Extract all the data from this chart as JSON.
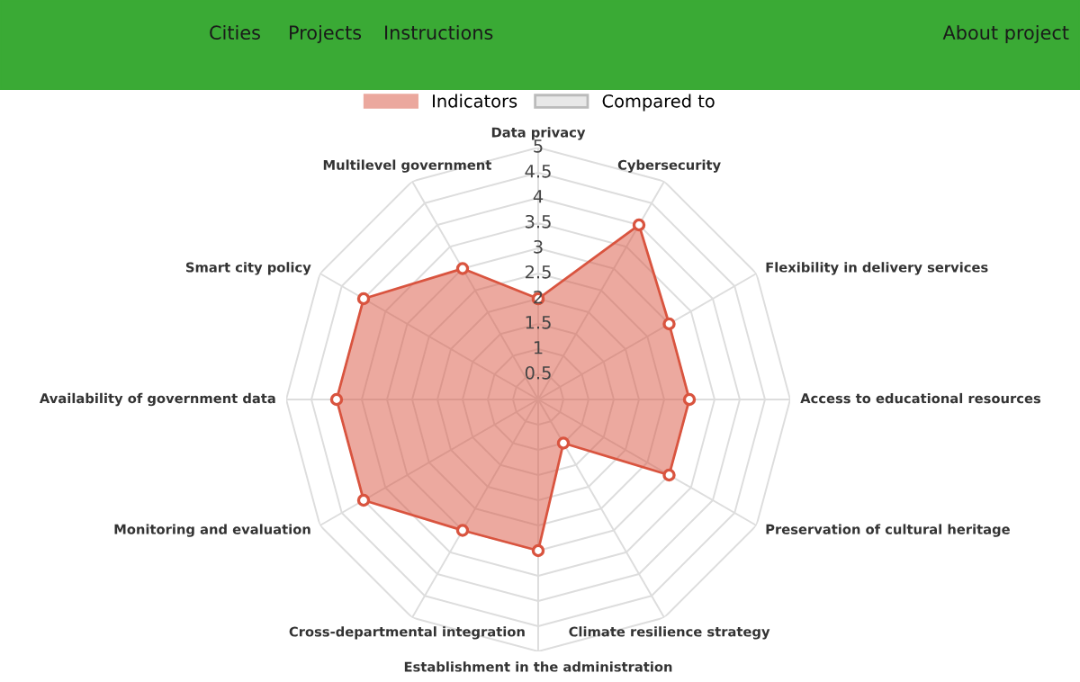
{
  "chart_data": {
    "type": "radar",
    "categories": [
      "Data privacy",
      "Cybersecurity",
      "Flexibility in delivery services",
      "Access to educational resources",
      "Preservation of cultural heritage",
      "Climate resilience strategy",
      "Establishment in the administration",
      "Cross-departmental integration",
      "Monitoring and evaluation",
      "Availability of government data",
      "Smart city policy",
      "Multilevel government"
    ],
    "series": [
      {
        "name": "Indicators",
        "color": "#d9543f",
        "values": [
          2,
          4,
          3,
          3,
          3,
          1,
          3,
          3,
          4,
          4,
          4,
          3
        ]
      },
      {
        "name": "Compared to",
        "color": "#e8e8e8",
        "values": [
          null,
          null,
          null,
          null,
          null,
          null,
          null,
          null,
          null,
          null,
          null,
          null
        ]
      }
    ],
    "ylim": [
      0,
      5
    ],
    "yticks": [
      0.5,
      1,
      1.5,
      2,
      2.5,
      3,
      3.5,
      4,
      4.5,
      5
    ],
    "grid": true,
    "legend": "top",
    "marker": "circle",
    "annotations": [
      "Cities",
      "Projects",
      "Instructions",
      "About project"
    ]
  }
}
